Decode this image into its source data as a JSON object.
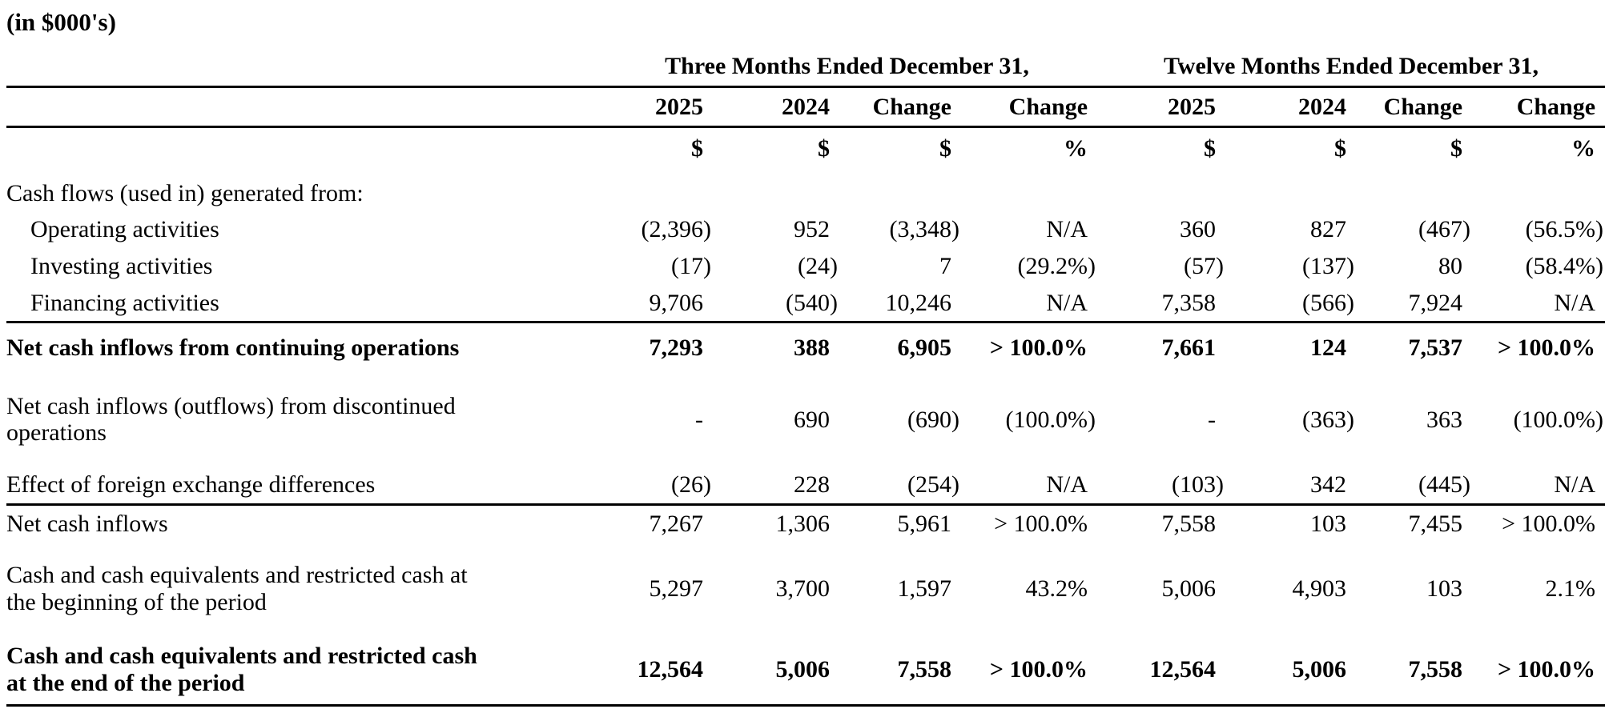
{
  "units_label": "(in $000's)",
  "table": {
    "period_headers": [
      "Three Months Ended December 31,",
      "Twelve Months Ended December 31,"
    ],
    "year_headers": [
      "2025",
      "2024",
      "Change",
      "Change",
      "2025",
      "2024",
      "Change",
      "Change"
    ],
    "unit_headers": [
      "$",
      "$",
      "$",
      "%",
      "$",
      "$",
      "$",
      "%"
    ],
    "rows": [
      {
        "label": "Cash flows (used in) generated from:",
        "section": true,
        "indent": false,
        "bold": false,
        "tall": false,
        "border_bottom": false,
        "values": [
          "",
          "",
          "",
          "",
          "",
          "",
          "",
          ""
        ]
      },
      {
        "label": "Operating activities",
        "section": false,
        "indent": true,
        "bold": false,
        "tall": false,
        "border_bottom": false,
        "values": [
          "(2,396)",
          "952",
          "(3,348)",
          "N/A",
          "360",
          "827",
          "(467)",
          "(56.5%)"
        ]
      },
      {
        "label": "Investing activities",
        "section": false,
        "indent": true,
        "bold": false,
        "tall": false,
        "border_bottom": false,
        "values": [
          "(17)",
          "(24)",
          "7",
          "(29.2%)",
          "(57)",
          "(137)",
          "80",
          "(58.4%)"
        ]
      },
      {
        "label": "Financing activities",
        "section": false,
        "indent": true,
        "bold": false,
        "tall": false,
        "border_bottom": true,
        "values": [
          "9,706",
          "(540)",
          "10,246",
          "N/A",
          "7,358",
          "(566)",
          "7,924",
          "N/A"
        ]
      },
      {
        "label": "Net cash inflows from continuing operations",
        "section": false,
        "indent": false,
        "bold": true,
        "tall": false,
        "border_bottom": false,
        "values": [
          "7,293",
          "388",
          "6,905",
          "> 100.0%",
          "7,661",
          "124",
          "7,537",
          "> 100.0%"
        ]
      },
      {
        "label": "Net cash inflows (outflows) from discontinued\noperations",
        "section": false,
        "indent": false,
        "bold": false,
        "tall": true,
        "border_bottom": false,
        "values": [
          "-",
          "690",
          "(690)",
          "(100.0%)",
          "-",
          "(363)",
          "363",
          "(100.0%)"
        ]
      },
      {
        "label": "Effect of foreign exchange differences",
        "section": false,
        "indent": false,
        "bold": false,
        "tall": false,
        "border_bottom": true,
        "values": [
          "(26)",
          "228",
          "(254)",
          "N/A",
          "(103)",
          "342",
          "(445)",
          "N/A"
        ]
      },
      {
        "label": "Net cash inflows",
        "section": false,
        "indent": false,
        "bold": false,
        "tall": false,
        "border_bottom": false,
        "values": [
          "7,267",
          "1,306",
          "5,961",
          "> 100.0%",
          "7,558",
          "103",
          "7,455",
          "> 100.0%"
        ]
      },
      {
        "label": "Cash and cash equivalents and restricted cash at\nthe beginning of the period",
        "section": false,
        "indent": false,
        "bold": false,
        "tall": true,
        "border_bottom": false,
        "values": [
          "5,297",
          "3,700",
          "1,597",
          "43.2%",
          "5,006",
          "4,903",
          "103",
          "2.1%"
        ]
      },
      {
        "label": "Cash and cash equivalents and restricted cash\nat the end of the period",
        "section": false,
        "indent": false,
        "bold": true,
        "tall": true,
        "border_bottom": true,
        "values": [
          "12,564",
          "5,006",
          "7,558",
          "> 100.0%",
          "12,564",
          "5,006",
          "7,558",
          "> 100.0%"
        ]
      }
    ]
  }
}
